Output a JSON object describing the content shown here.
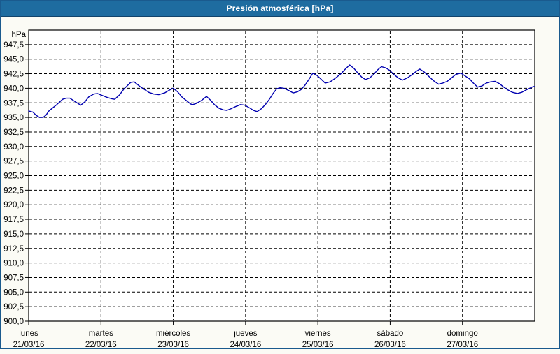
{
  "window": {
    "title": "Presión atmosférica [hPa]"
  },
  "colors": {
    "title_bar_bg": "#1E6CA0",
    "window_border": "#1A5A8E",
    "content_bg": "#FBFBF5",
    "plot_bg": "#FFFFFF",
    "grid_color": "#000000",
    "line_color": "#0000B0",
    "title_text": "#FFFFFF"
  },
  "chart_data": {
    "type": "line",
    "title": "Presión atmosférica [hPa]",
    "unit_label": "hPa",
    "ylabel": "hPa",
    "xlabel": "",
    "ylim": [
      900,
      950
    ],
    "ytick_step": 2.5,
    "grid": "dashed",
    "legend_position": "none",
    "yticks": [
      {
        "value": 947.5,
        "label": "947,5"
      },
      {
        "value": 945.0,
        "label": "945,0"
      },
      {
        "value": 942.5,
        "label": "942,5"
      },
      {
        "value": 940.0,
        "label": "940,0"
      },
      {
        "value": 937.5,
        "label": "937,5"
      },
      {
        "value": 935.0,
        "label": "935,0"
      },
      {
        "value": 932.5,
        "label": "932,5"
      },
      {
        "value": 930.0,
        "label": "930,0"
      },
      {
        "value": 927.5,
        "label": "927,5"
      },
      {
        "value": 925.0,
        "label": "925,0"
      },
      {
        "value": 922.5,
        "label": "922,5"
      },
      {
        "value": 920.0,
        "label": "920,0"
      },
      {
        "value": 917.5,
        "label": "917,5"
      },
      {
        "value": 915.0,
        "label": "915,0"
      },
      {
        "value": 912.5,
        "label": "912,5"
      },
      {
        "value": 910.0,
        "label": "910,0"
      },
      {
        "value": 907.5,
        "label": "907,5"
      },
      {
        "value": 905.0,
        "label": "905,0"
      },
      {
        "value": 902.5,
        "label": "902,5"
      },
      {
        "value": 900.0,
        "label": "900,0"
      }
    ],
    "x_range_days": 7,
    "xticks": [
      {
        "name": "lunes",
        "date": "21/03/16"
      },
      {
        "name": "martes",
        "date": "22/03/16"
      },
      {
        "name": "miércoles",
        "date": "23/03/16"
      },
      {
        "name": "jueves",
        "date": "24/03/16"
      },
      {
        "name": "viernes",
        "date": "25/03/16"
      },
      {
        "name": "sábado",
        "date": "26/03/16"
      },
      {
        "name": "domingo",
        "date": "27/03/16"
      }
    ],
    "series": [
      {
        "name": "Presión atmosférica",
        "color": "#0000B0",
        "points": [
          [
            0.0,
            936.1
          ],
          [
            0.06,
            935.9
          ],
          [
            0.1,
            935.4
          ],
          [
            0.15,
            935.0
          ],
          [
            0.2,
            935.0
          ],
          [
            0.24,
            935.4
          ],
          [
            0.28,
            936.1
          ],
          [
            0.38,
            937.1
          ],
          [
            0.47,
            938.1
          ],
          [
            0.52,
            938.3
          ],
          [
            0.57,
            938.3
          ],
          [
            0.63,
            937.8
          ],
          [
            0.72,
            937.1
          ],
          [
            0.78,
            937.7
          ],
          [
            0.83,
            938.5
          ],
          [
            0.9,
            939.0
          ],
          [
            0.95,
            939.1
          ],
          [
            1.01,
            938.8
          ],
          [
            1.09,
            938.4
          ],
          [
            1.15,
            938.2
          ],
          [
            1.19,
            938.1
          ],
          [
            1.26,
            938.9
          ],
          [
            1.32,
            939.9
          ],
          [
            1.41,
            941.0
          ],
          [
            1.46,
            941.1
          ],
          [
            1.54,
            940.3
          ],
          [
            1.6,
            939.8
          ],
          [
            1.66,
            939.3
          ],
          [
            1.73,
            939.0
          ],
          [
            1.8,
            938.9
          ],
          [
            1.88,
            939.2
          ],
          [
            1.95,
            939.7
          ],
          [
            2.0,
            940.0
          ],
          [
            2.06,
            939.4
          ],
          [
            2.12,
            938.5
          ],
          [
            2.18,
            937.9
          ],
          [
            2.24,
            937.3
          ],
          [
            2.27,
            937.2
          ],
          [
            2.32,
            937.4
          ],
          [
            2.39,
            937.9
          ],
          [
            2.46,
            938.6
          ],
          [
            2.52,
            937.9
          ],
          [
            2.57,
            937.2
          ],
          [
            2.63,
            936.6
          ],
          [
            2.69,
            936.3
          ],
          [
            2.74,
            936.2
          ],
          [
            2.8,
            936.5
          ],
          [
            2.87,
            936.9
          ],
          [
            2.93,
            937.2
          ],
          [
            2.99,
            937.1
          ],
          [
            3.06,
            936.6
          ],
          [
            3.11,
            936.2
          ],
          [
            3.16,
            936.0
          ],
          [
            3.22,
            936.5
          ],
          [
            3.28,
            937.3
          ],
          [
            3.33,
            938.1
          ],
          [
            3.38,
            939.1
          ],
          [
            3.43,
            939.9
          ],
          [
            3.48,
            940.1
          ],
          [
            3.53,
            940.0
          ],
          [
            3.6,
            939.6
          ],
          [
            3.66,
            939.2
          ],
          [
            3.72,
            939.4
          ],
          [
            3.77,
            939.8
          ],
          [
            3.82,
            940.5
          ],
          [
            3.87,
            941.4
          ],
          [
            3.93,
            942.6
          ],
          [
            3.99,
            942.2
          ],
          [
            4.05,
            941.5
          ],
          [
            4.1,
            940.9
          ],
          [
            4.17,
            941.1
          ],
          [
            4.24,
            941.7
          ],
          [
            4.32,
            942.5
          ],
          [
            4.38,
            943.3
          ],
          [
            4.44,
            944.0
          ],
          [
            4.5,
            943.4
          ],
          [
            4.56,
            942.5
          ],
          [
            4.61,
            941.9
          ],
          [
            4.66,
            941.5
          ],
          [
            4.72,
            941.8
          ],
          [
            4.78,
            942.5
          ],
          [
            4.83,
            943.2
          ],
          [
            4.88,
            943.7
          ],
          [
            4.94,
            943.5
          ],
          [
            4.99,
            943.1
          ],
          [
            5.05,
            942.4
          ],
          [
            5.11,
            941.8
          ],
          [
            5.17,
            941.4
          ],
          [
            5.24,
            941.8
          ],
          [
            5.31,
            942.4
          ],
          [
            5.36,
            942.9
          ],
          [
            5.41,
            943.3
          ],
          [
            5.47,
            942.8
          ],
          [
            5.53,
            942.1
          ],
          [
            5.6,
            941.3
          ],
          [
            5.67,
            940.7
          ],
          [
            5.73,
            940.9
          ],
          [
            5.79,
            941.2
          ],
          [
            5.85,
            941.8
          ],
          [
            5.91,
            942.4
          ],
          [
            5.98,
            942.6
          ],
          [
            6.04,
            942.1
          ],
          [
            6.1,
            941.6
          ],
          [
            6.15,
            940.9
          ],
          [
            6.21,
            940.2
          ],
          [
            6.27,
            940.4
          ],
          [
            6.33,
            940.9
          ],
          [
            6.39,
            941.1
          ],
          [
            6.45,
            941.2
          ],
          [
            6.51,
            940.8
          ],
          [
            6.57,
            940.2
          ],
          [
            6.63,
            939.7
          ],
          [
            6.69,
            939.3
          ],
          [
            6.76,
            939.1
          ],
          [
            6.82,
            939.3
          ],
          [
            6.88,
            939.7
          ],
          [
            6.93,
            940.0
          ],
          [
            6.98,
            940.3
          ],
          [
            7.0,
            940.3
          ]
        ]
      }
    ]
  }
}
